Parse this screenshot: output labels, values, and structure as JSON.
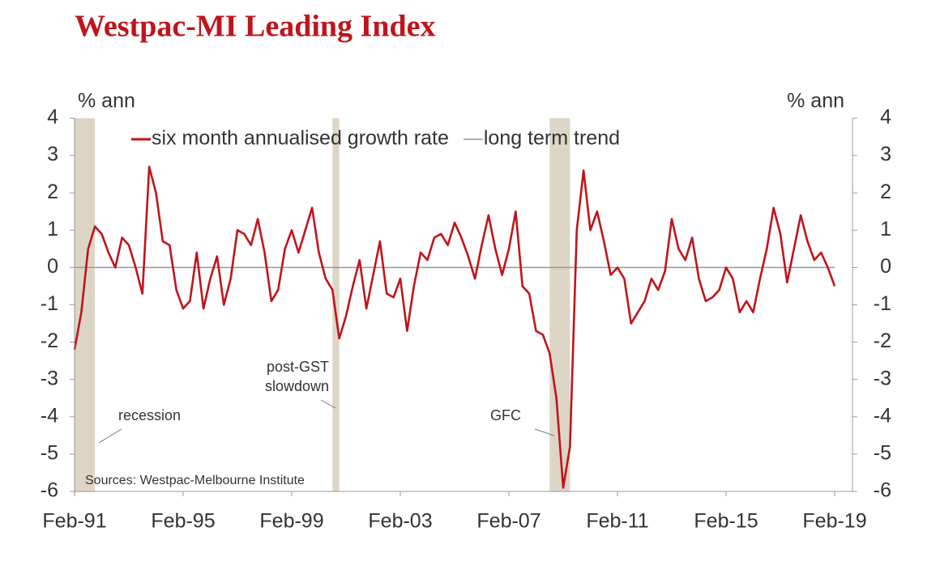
{
  "chart_data": {
    "type": "line",
    "title": "Westpac-MI Leading Index",
    "ylabel": "% ann",
    "y2label": "% ann",
    "x": [
      "Feb-91",
      "May-91",
      "Aug-91",
      "Nov-91",
      "Feb-92",
      "May-92",
      "Aug-92",
      "Nov-92",
      "Feb-93",
      "May-93",
      "Aug-93",
      "Nov-93",
      "Feb-94",
      "May-94",
      "Aug-94",
      "Nov-94",
      "Feb-95",
      "May-95",
      "Aug-95",
      "Nov-95",
      "Feb-96",
      "May-96",
      "Aug-96",
      "Nov-96",
      "Feb-97",
      "May-97",
      "Aug-97",
      "Nov-97",
      "Feb-98",
      "May-98",
      "Aug-98",
      "Nov-98",
      "Feb-99",
      "May-99",
      "Aug-99",
      "Nov-99",
      "Feb-00",
      "May-00",
      "Aug-00",
      "Nov-00",
      "Feb-01",
      "May-01",
      "Aug-01",
      "Nov-01",
      "Feb-02",
      "May-02",
      "Aug-02",
      "Nov-02",
      "Feb-03",
      "May-03",
      "Aug-03",
      "Nov-03",
      "Feb-04",
      "May-04",
      "Aug-04",
      "Nov-04",
      "Feb-05",
      "May-05",
      "Aug-05",
      "Nov-05",
      "Feb-06",
      "May-06",
      "Aug-06",
      "Nov-06",
      "Feb-07",
      "May-07",
      "Aug-07",
      "Nov-07",
      "Feb-08",
      "May-08",
      "Aug-08",
      "Nov-08",
      "Feb-09",
      "May-09",
      "Aug-09",
      "Nov-09",
      "Feb-10",
      "May-10",
      "Aug-10",
      "Nov-10",
      "Feb-11",
      "May-11",
      "Aug-11",
      "Nov-11",
      "Feb-12",
      "May-12",
      "Aug-12",
      "Nov-12",
      "Feb-13",
      "May-13",
      "Aug-13",
      "Nov-13",
      "Feb-14",
      "May-14",
      "Aug-14",
      "Nov-14",
      "Feb-15",
      "May-15",
      "Aug-15",
      "Nov-15",
      "Feb-16",
      "May-16",
      "Aug-16",
      "Nov-16",
      "Feb-17",
      "May-17",
      "Aug-17",
      "Nov-17",
      "Feb-18",
      "May-18",
      "Aug-18",
      "Nov-18",
      "Feb-19"
    ],
    "xticks": [
      "Feb-91",
      "Feb-95",
      "Feb-99",
      "Feb-03",
      "Feb-07",
      "Feb-11",
      "Feb-15",
      "Feb-19"
    ],
    "series": [
      {
        "name": "six month annualised growth rate",
        "color": "#c0141c",
        "values": [
          -2.2,
          -1.2,
          0.5,
          1.1,
          0.9,
          0.4,
          0.0,
          0.8,
          0.6,
          0.0,
          -0.7,
          2.7,
          2.0,
          0.7,
          0.6,
          -0.6,
          -1.1,
          -0.9,
          0.4,
          -1.1,
          -0.3,
          0.3,
          -1.0,
          -0.3,
          1.0,
          0.9,
          0.6,
          1.3,
          0.4,
          -0.9,
          -0.6,
          0.5,
          1.0,
          0.4,
          1.0,
          1.6,
          0.4,
          -0.3,
          -0.6,
          -1.9,
          -1.3,
          -0.5,
          0.2,
          -1.1,
          -0.2,
          0.7,
          -0.7,
          -0.8,
          -0.3,
          -1.7,
          -0.5,
          0.4,
          0.2,
          0.8,
          0.9,
          0.6,
          1.2,
          0.8,
          0.3,
          -0.3,
          0.6,
          1.4,
          0.5,
          -0.2,
          0.5,
          1.5,
          -0.5,
          -0.7,
          -1.7,
          -1.8,
          -2.3,
          -3.5,
          -5.9,
          -4.8,
          1.0,
          2.6,
          1.0,
          1.5,
          0.7,
          -0.2,
          0.0,
          -0.3,
          -1.5,
          -1.2,
          -0.9,
          -0.3,
          -0.6,
          -0.1,
          1.3,
          0.5,
          0.2,
          0.8,
          -0.3,
          -0.9,
          -0.8,
          -0.6,
          0.0,
          -0.3,
          -1.2,
          -0.9,
          -1.2,
          -0.3,
          0.5,
          1.6,
          0.9,
          -0.4,
          0.5,
          1.4,
          0.7,
          0.2,
          0.4,
          0.0,
          -0.5
        ]
      },
      {
        "name": "long term trend",
        "color": "#999999",
        "values": [
          0,
          0,
          0,
          0,
          0,
          0,
          0,
          0,
          0,
          0,
          0,
          0,
          0,
          0,
          0,
          0,
          0,
          0,
          0,
          0,
          0,
          0,
          0,
          0,
          0,
          0,
          0,
          0,
          0,
          0,
          0,
          0,
          0,
          0,
          0,
          0,
          0,
          0,
          0,
          0,
          0,
          0,
          0,
          0,
          0,
          0,
          0,
          0,
          0,
          0,
          0,
          0,
          0,
          0,
          0,
          0,
          0,
          0,
          0,
          0,
          0,
          0,
          0,
          0,
          0,
          0,
          0,
          0,
          0,
          0,
          0,
          0,
          0,
          0,
          0,
          0,
          0,
          0,
          0,
          0,
          0,
          0,
          0,
          0,
          0,
          0,
          0,
          0,
          0,
          0,
          0,
          0,
          0,
          0,
          0,
          0,
          0,
          0,
          0,
          0,
          0,
          0,
          0,
          0,
          0,
          0,
          0,
          0,
          0,
          0,
          0,
          0,
          0
        ]
      }
    ],
    "ylim": [
      -6,
      4
    ],
    "yticks": [
      -6,
      -5,
      -4,
      -3,
      -2,
      -1,
      0,
      1,
      2,
      3,
      4
    ],
    "y2lim": [
      -6,
      4
    ],
    "y2ticks": [
      -6,
      -5,
      -4,
      -3,
      -2,
      -1,
      0,
      1,
      2,
      3,
      4
    ],
    "shaded": [
      {
        "start": "Feb-91",
        "end": "Nov-91",
        "color": "#ddd5c5"
      },
      {
        "start": "Aug-00",
        "end": "Nov-00",
        "color": "#ddd5c5"
      },
      {
        "start": "Aug-08",
        "end": "May-09",
        "color": "#ddd5c5"
      }
    ],
    "annotations": [
      "recession",
      "post-GST",
      "slowdown",
      "GFC"
    ],
    "source": "Sources: Westpac-Melbourne Institute",
    "legend": "top",
    "grid": false
  }
}
